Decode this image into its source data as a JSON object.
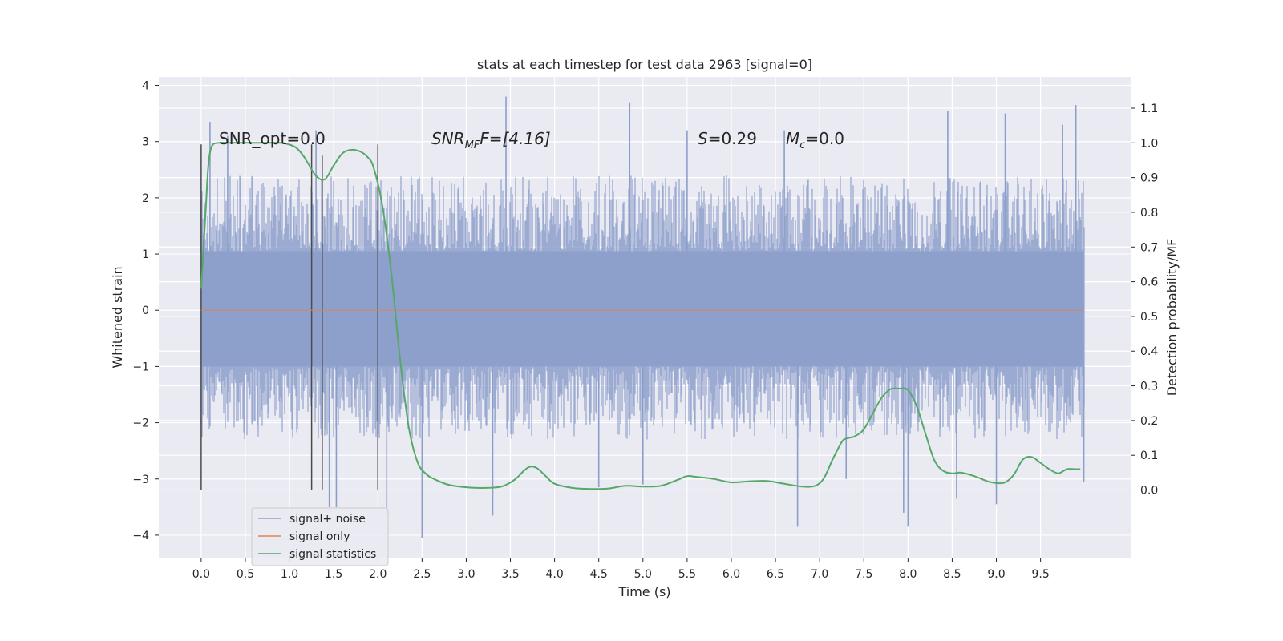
{
  "chart_data": {
    "type": "line",
    "title": "stats at each timestep for test data 2963 [signal=0]",
    "xlabel": "Time (s)",
    "ylabel": "Whitened strain",
    "y2label": "Detection probability/MF",
    "xlim": [
      -0.48,
      10.52
    ],
    "ylim": [
      -4.4,
      4.15
    ],
    "y2lim": [
      -0.195,
      1.19
    ],
    "x_ticks": [
      "0.0",
      "0.5",
      "1.0",
      "1.5",
      "2.0",
      "2.5",
      "3.0",
      "3.5",
      "4.0",
      "4.5",
      "5.0",
      "5.5",
      "6.0",
      "6.5",
      "7.0",
      "7.5",
      "8.0",
      "8.5",
      "9.0",
      "9.5"
    ],
    "y_ticks": [
      "4",
      "3",
      "2",
      "1",
      "0",
      "−1",
      "−2",
      "−3",
      "−4"
    ],
    "y2_ticks": [
      "1.1",
      "1.0",
      "0.9",
      "0.8",
      "0.7",
      "0.6",
      "0.5",
      "0.4",
      "0.3",
      "0.2",
      "0.1",
      "0.0"
    ],
    "grid": true,
    "legend_position": "lower-left",
    "annotations": {
      "snr_opt": "SNR_opt=0.0",
      "snr_mf_sym": "SNR",
      "snr_mf_sub": "MF",
      "snr_mf_rest": "F=[4.16]",
      "s_sym": "S",
      "s_rest": "=0.29",
      "mc_sym": "M",
      "mc_sub": "c",
      "mc_rest": "=0.0"
    },
    "series": [
      {
        "name": "signal+ noise",
        "color": "#8c9fcb",
        "axis": "left",
        "x_range": [
          0.0,
          9.99
        ],
        "envelope_core": [
          -1.0,
          1.05
        ],
        "envelope_typical": [
          -2.3,
          2.4
        ],
        "spikes": [
          [
            0.0,
            1.95
          ],
          [
            0.1,
            3.35
          ],
          [
            0.3,
            3.1
          ],
          [
            1.3,
            3.2
          ],
          [
            1.45,
            -3.5
          ],
          [
            1.53,
            -3.5
          ],
          [
            2.1,
            -3.65
          ],
          [
            2.5,
            -4.05
          ],
          [
            3.3,
            -3.65
          ],
          [
            3.45,
            3.8
          ],
          [
            4.5,
            -3.15
          ],
          [
            4.85,
            3.7
          ],
          [
            5.0,
            -3.1
          ],
          [
            5.5,
            3.2
          ],
          [
            6.6,
            3.2
          ],
          [
            6.75,
            -3.85
          ],
          [
            7.3,
            -3.0
          ],
          [
            7.95,
            -3.6
          ],
          [
            8.0,
            -3.85
          ],
          [
            8.45,
            3.55
          ],
          [
            8.55,
            -3.35
          ],
          [
            9.0,
            -3.45
          ],
          [
            9.1,
            3.5
          ],
          [
            9.75,
            3.3
          ],
          [
            9.9,
            3.65
          ],
          [
            9.99,
            -3.05
          ]
        ]
      },
      {
        "name": "signal only",
        "color": "#dd8452",
        "axis": "left",
        "x": [
          0.0,
          9.99
        ],
        "values": [
          0.0,
          0.0
        ]
      },
      {
        "name": "signal statistics",
        "color": "#55a868",
        "axis": "right",
        "x": [
          0.0,
          0.05,
          0.08,
          0.12,
          0.2,
          0.3,
          0.5,
          0.7,
          0.9,
          1.0,
          1.08,
          1.15,
          1.2,
          1.3,
          1.4,
          1.5,
          1.6,
          1.7,
          1.8,
          1.88,
          1.95,
          2.05,
          2.15,
          2.25,
          2.35,
          2.45,
          2.55,
          2.65,
          2.8,
          3.0,
          3.2,
          3.4,
          3.55,
          3.65,
          3.72,
          3.8,
          3.9,
          4.0,
          4.2,
          4.4,
          4.6,
          4.8,
          5.0,
          5.2,
          5.4,
          5.5,
          5.6,
          5.8,
          6.0,
          6.2,
          6.4,
          6.6,
          6.8,
          6.95,
          7.05,
          7.15,
          7.25,
          7.3,
          7.4,
          7.5,
          7.6,
          7.7,
          7.8,
          7.9,
          8.0,
          8.1,
          8.2,
          8.3,
          8.4,
          8.5,
          8.6,
          8.75,
          8.9,
          9.0,
          9.1,
          9.2,
          9.3,
          9.4,
          9.5,
          9.6,
          9.7,
          9.8,
          9.9,
          9.95
        ],
        "values": [
          0.58,
          0.8,
          0.93,
          0.99,
          1.0,
          1.0,
          1.0,
          1.0,
          1.0,
          0.995,
          0.985,
          0.965,
          0.945,
          0.905,
          0.895,
          0.935,
          0.97,
          0.98,
          0.975,
          0.96,
          0.93,
          0.82,
          0.63,
          0.38,
          0.18,
          0.08,
          0.045,
          0.03,
          0.015,
          0.008,
          0.006,
          0.01,
          0.03,
          0.055,
          0.067,
          0.063,
          0.04,
          0.018,
          0.006,
          0.003,
          0.004,
          0.012,
          0.01,
          0.012,
          0.03,
          0.04,
          0.038,
          0.032,
          0.022,
          0.025,
          0.026,
          0.018,
          0.01,
          0.012,
          0.035,
          0.09,
          0.138,
          0.148,
          0.155,
          0.175,
          0.22,
          0.265,
          0.29,
          0.292,
          0.288,
          0.24,
          0.16,
          0.085,
          0.055,
          0.048,
          0.05,
          0.04,
          0.025,
          0.02,
          0.022,
          0.045,
          0.088,
          0.095,
          0.078,
          0.06,
          0.048,
          0.06,
          0.06,
          0.06
        ]
      }
    ],
    "vertical_markers": {
      "color": "#4a4a4a",
      "axis": "left",
      "lines": [
        {
          "x": 0.0,
          "y": [
            -3.2,
            2.95
          ]
        },
        {
          "x": 1.25,
          "y": [
            -3.2,
            2.95
          ]
        },
        {
          "x": 1.37,
          "y": [
            -3.2,
            2.75
          ]
        },
        {
          "x": 2.0,
          "y": [
            -3.2,
            2.95
          ]
        }
      ]
    }
  }
}
